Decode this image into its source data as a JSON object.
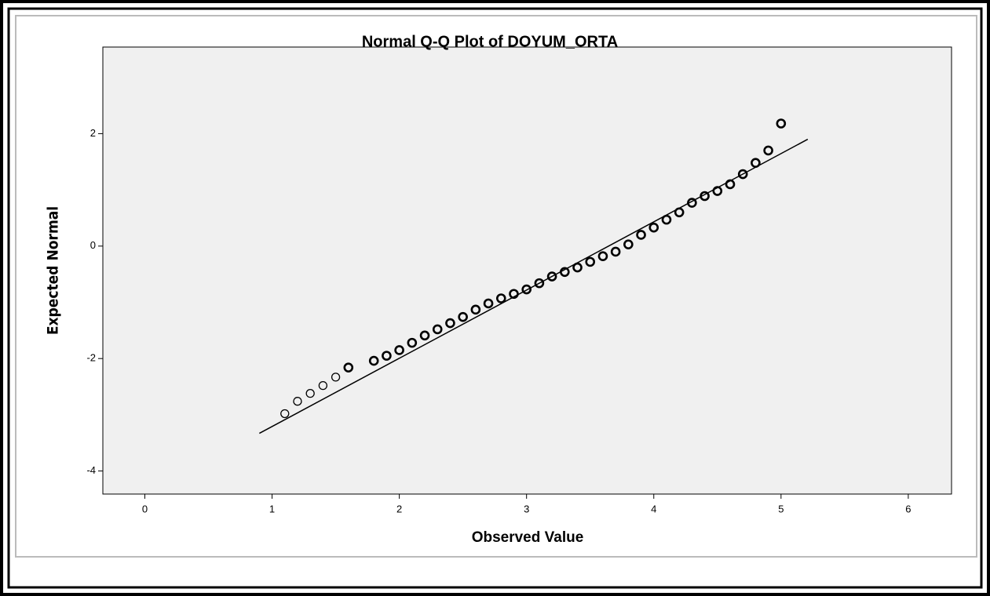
{
  "chart_data": {
    "type": "scatter",
    "title": "Normal Q-Q Plot of DOYUM_ORTA",
    "x_label": "Observed Value",
    "y_label": "Expected Normal",
    "x": [
      1.1,
      1.2,
      1.3,
      1.4,
      1.5,
      1.6,
      1.8,
      1.9,
      2.0,
      2.1,
      2.2,
      2.3,
      2.4,
      2.5,
      2.6,
      2.7,
      2.8,
      2.9,
      3.0,
      3.1,
      3.2,
      3.3,
      3.4,
      3.5,
      3.6,
      3.7,
      3.8,
      3.9,
      4.0,
      4.1,
      4.2,
      4.3,
      4.4,
      4.5,
      4.6,
      4.7,
      4.8,
      4.9,
      5.0
    ],
    "values": [
      -2.98,
      -2.76,
      -2.62,
      -2.48,
      -2.33,
      -2.16,
      -2.04,
      -1.95,
      -1.85,
      -1.72,
      -1.59,
      -1.48,
      -1.37,
      -1.26,
      -1.13,
      -1.02,
      -0.93,
      -0.85,
      -0.77,
      -0.66,
      -0.54,
      -0.46,
      -0.38,
      -0.28,
      -0.18,
      -0.1,
      0.03,
      0.2,
      0.33,
      0.47,
      0.6,
      0.77,
      0.89,
      0.98,
      1.1,
      1.28,
      1.48,
      1.7,
      2.18
    ],
    "color": "#000000",
    "reference_line": {
      "x": [
        0.9,
        5.21
      ],
      "values": [
        -3.33,
        1.9
      ],
      "color": "#000000"
    },
    "xlim": [
      -0.33,
      6.34
    ],
    "xticks": [
      0,
      1,
      2,
      3,
      4,
      5,
      6
    ],
    "ylim": [
      -4.41,
      3.54
    ],
    "yticks": [
      -4,
      -2,
      0,
      2
    ],
    "grid": false
  }
}
